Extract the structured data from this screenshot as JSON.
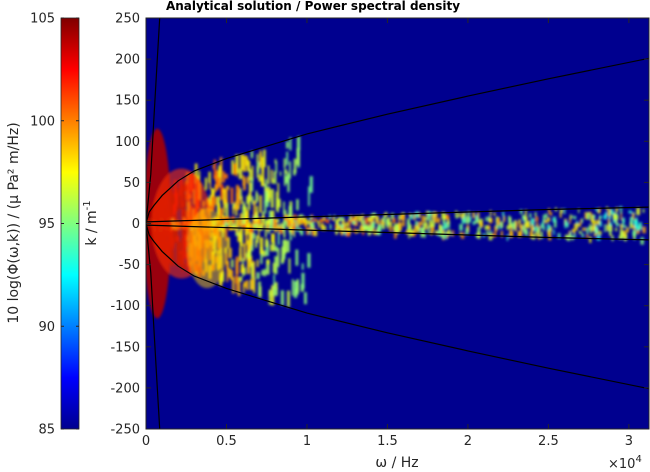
{
  "chart_data": {
    "type": "heatmap",
    "title": "Analytical solution / Power spectral density",
    "xlabel": "ω / Hz",
    "x_exponent_label": "×10",
    "x_exponent_power": "4",
    "xlim": [
      0,
      31250
    ],
    "x_ticks": [
      0,
      5000,
      10000,
      15000,
      20000,
      25000,
      30000
    ],
    "x_tick_labels": [
      "0",
      "0.5",
      "1",
      "1.5",
      "2",
      "2.5",
      "3"
    ],
    "ylabel": "k / m",
    "ylabel_superscript": "-1",
    "ylim": [
      -250,
      250
    ],
    "y_ticks": [
      250,
      200,
      150,
      100,
      50,
      0,
      -50,
      -100,
      -150,
      -200,
      -250
    ],
    "y_tick_labels": [
      "250",
      "200",
      "150",
      "100",
      "50",
      "0",
      "-50",
      "-100",
      "-150",
      "-200",
      "-250"
    ],
    "colorbar": {
      "label": "10 log(Φ(ω,k)) / (μ Pa² m/Hz)",
      "range": [
        85,
        105
      ],
      "ticks": [
        105,
        100,
        95,
        90,
        85
      ],
      "tick_labels": [
        "105",
        "100",
        "95",
        "90",
        "85"
      ],
      "colormap": "jet"
    },
    "background_color": "#00008f",
    "boundary_curves": [
      {
        "name": "outer",
        "points": [
          [
            0,
            0
          ],
          [
            200,
            14
          ],
          [
            500,
            22
          ],
          [
            1000,
            34
          ],
          [
            2000,
            52
          ],
          [
            3000,
            64
          ],
          [
            5000,
            79
          ],
          [
            7500,
            94
          ],
          [
            10000,
            109
          ],
          [
            15000,
            133
          ],
          [
            20000,
            155
          ],
          [
            25000,
            176
          ],
          [
            31250,
            201
          ]
        ]
      },
      {
        "name": "inner",
        "points": [
          [
            0,
            2
          ],
          [
            5000,
            5
          ],
          [
            10000,
            8
          ],
          [
            15000,
            11
          ],
          [
            20000,
            14
          ],
          [
            25000,
            17
          ],
          [
            31250,
            20
          ]
        ]
      },
      {
        "name": "steep",
        "points": [
          [
            0,
            0
          ],
          [
            300,
            60
          ],
          [
            500,
            130
          ],
          [
            700,
            200
          ],
          [
            850,
            250
          ]
        ]
      }
    ]
  }
}
